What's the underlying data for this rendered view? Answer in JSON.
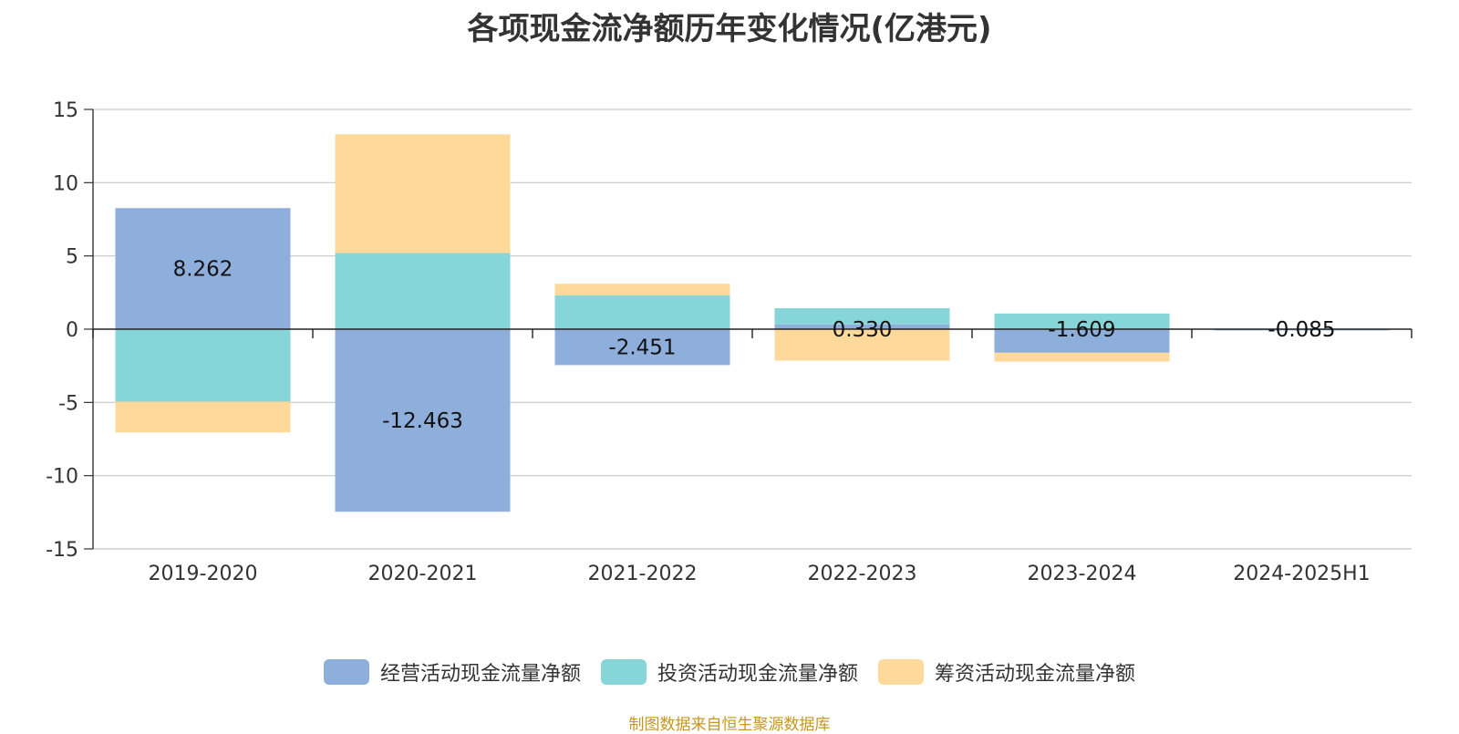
{
  "source_note": "制图数据来自恒生聚源数据库",
  "chart_data": {
    "type": "bar",
    "stacked": true,
    "title": "各项现金流净额历年变化情况(亿港元)",
    "categories": [
      "2019-2020",
      "2020-2021",
      "2021-2022",
      "2022-2023",
      "2023-2024",
      "2024-2025H1"
    ],
    "ylim": [
      -15,
      15
    ],
    "yticks": [
      15,
      10,
      5,
      0,
      -5,
      -10,
      -15
    ],
    "ytick_labels": [
      "15",
      "10",
      "5",
      "0",
      "-5",
      "-10",
      "-15"
    ],
    "grid": true,
    "legend_position": "bottom",
    "series": [
      {
        "name": "经营活动现金流量净额",
        "color": "#8eaedc",
        "values": [
          8.262,
          -12.463,
          -2.451,
          0.33,
          -1.609,
          -0.085
        ],
        "labels": [
          "8.262",
          "-12.463",
          "-2.451",
          "0.330",
          "-1.609",
          "-0.085"
        ]
      },
      {
        "name": "投资活动现金流量净额",
        "color": "#86d6d9",
        "values": [
          -4.95,
          5.2,
          2.3,
          1.1,
          1.07,
          0
        ]
      },
      {
        "name": "筹资活动现金流量净额",
        "color": "#ffd99a",
        "values": [
          -2.1,
          8.1,
          0.8,
          -2.15,
          -0.6,
          0
        ]
      }
    ]
  }
}
